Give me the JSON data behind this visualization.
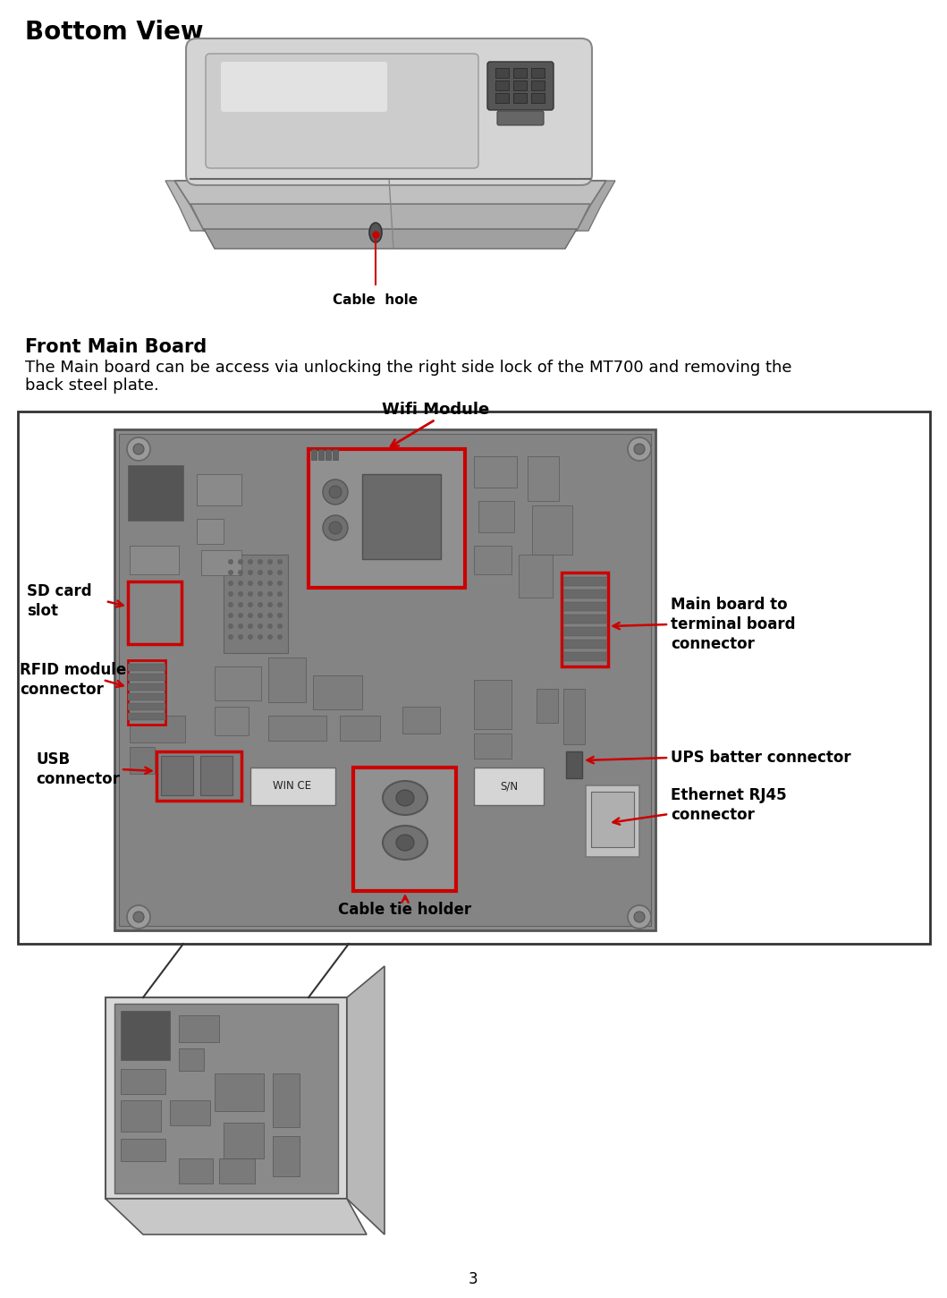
{
  "title": "Bottom View",
  "section2_title": "Front Main Board",
  "section2_line1": "The Main board can be access via unlocking the right side lock of the MT700 and removing the",
  "section2_line2": "back steel plate.",
  "cable_hole_label": "Cable  hole",
  "page_number": "3",
  "bg_color": "#ffffff",
  "text_color": "#000000",
  "red_color": "#cc0000",
  "label_wifi": "Wifi Module",
  "label_sd": "SD card\nslot",
  "label_rfid": "RFID module\nconnector",
  "label_usb": "USB\nconnector",
  "label_main": "Main board to\nterminal board\nconnector",
  "label_ups": "UPS batter connector",
  "label_eth": "Ethernet RJ45\nconnector",
  "label_cable": "Cable tie holder"
}
